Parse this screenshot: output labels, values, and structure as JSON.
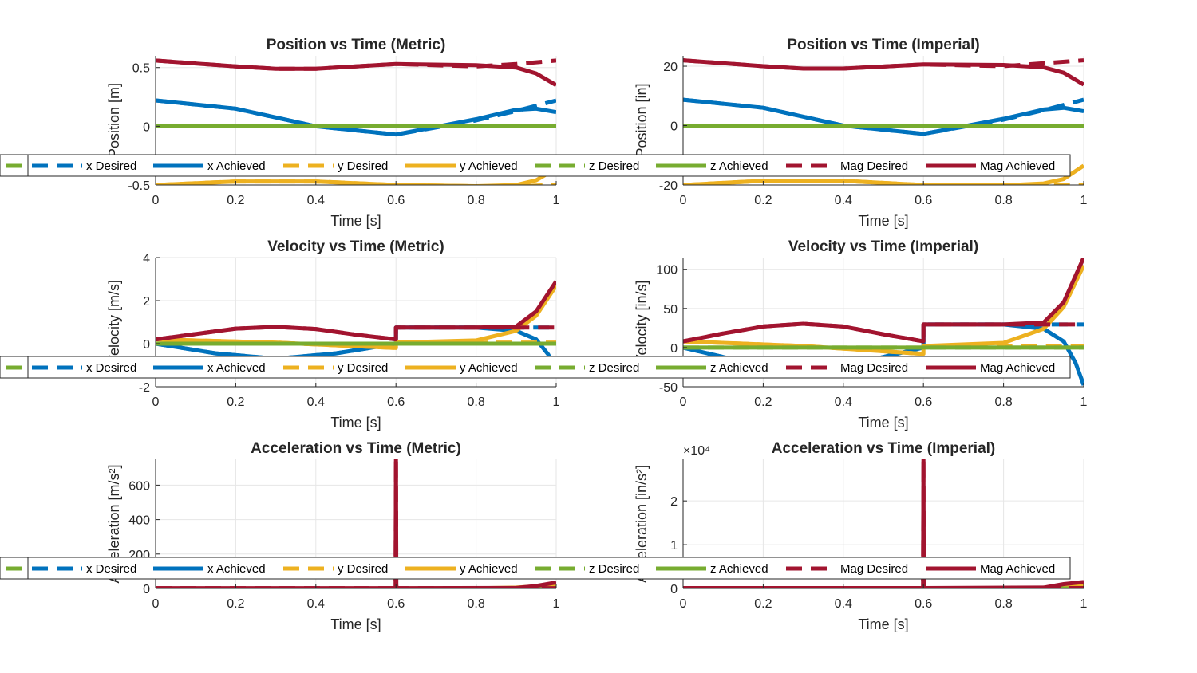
{
  "legend_entries": [
    "x Desired",
    "x Achieved",
    "y Desired",
    "y Achieved",
    "z Desired",
    "z Achieved",
    "Mag Desired",
    "Mag Achieved"
  ],
  "colors": {
    "x": "#0072BD",
    "y": "#EDB120",
    "z": "#77AC30",
    "mag": "#A2142F",
    "grid": "#e6e6e6",
    "axis": "#262626"
  },
  "chart_data": [
    {
      "type": "line",
      "title": "Position vs Time (Metric)",
      "xlabel": "Time [s]",
      "ylabel": "Position [m]",
      "xlim": [
        0,
        1
      ],
      "ylim": [
        -0.5,
        0.6
      ],
      "xticks": [
        0,
        0.2,
        0.4,
        0.6,
        0.8,
        1
      ],
      "xtick_labels": [
        "0",
        "0.2",
        "0.4",
        "0.6",
        "0.8",
        "1"
      ],
      "yticks": [
        -0.5,
        0,
        0.5
      ],
      "ytick_labels": [
        "-0.5",
        "0",
        "0.5"
      ],
      "series": [
        {
          "name": "x Desired",
          "x": [
            0,
            0.2,
            0.4,
            0.6,
            0.8,
            0.9,
            1.0
          ],
          "y": [
            0.22,
            0.15,
            0.0,
            -0.07,
            0.05,
            0.13,
            0.22
          ]
        },
        {
          "name": "x Achieved",
          "x": [
            0,
            0.2,
            0.4,
            0.6,
            0.8,
            0.9,
            0.95,
            1.0
          ],
          "y": [
            0.22,
            0.15,
            0.0,
            -0.07,
            0.06,
            0.14,
            0.15,
            0.12
          ]
        },
        {
          "name": "y Desired",
          "x": [
            0,
            0.2,
            0.4,
            0.6,
            0.8,
            0.9,
            1.0
          ],
          "y": [
            -0.5,
            -0.47,
            -0.47,
            -0.5,
            -0.51,
            -0.51,
            -0.5
          ]
        },
        {
          "name": "y Achieved",
          "x": [
            0,
            0.2,
            0.4,
            0.6,
            0.8,
            0.9,
            0.95,
            1.0
          ],
          "y": [
            -0.5,
            -0.47,
            -0.47,
            -0.5,
            -0.51,
            -0.5,
            -0.46,
            -0.36
          ]
        },
        {
          "name": "z Desired",
          "x": [
            0,
            1
          ],
          "y": [
            0,
            0
          ]
        },
        {
          "name": "z Achieved",
          "x": [
            0,
            1
          ],
          "y": [
            0,
            0
          ]
        },
        {
          "name": "Mag Desired",
          "x": [
            0,
            0.2,
            0.3,
            0.4,
            0.6,
            0.8,
            0.9,
            1.0
          ],
          "y": [
            0.56,
            0.51,
            0.49,
            0.49,
            0.53,
            0.51,
            0.53,
            0.56
          ]
        },
        {
          "name": "Mag Achieved",
          "x": [
            0,
            0.2,
            0.3,
            0.4,
            0.6,
            0.8,
            0.9,
            0.95,
            1.0
          ],
          "y": [
            0.56,
            0.51,
            0.49,
            0.49,
            0.53,
            0.52,
            0.5,
            0.45,
            0.35
          ]
        }
      ]
    },
    {
      "type": "line",
      "title": "Position vs Time (Imperial)",
      "xlabel": "Time [s]",
      "ylabel": "Position [in]",
      "xlim": [
        0,
        1
      ],
      "ylim": [
        -20,
        23.5
      ],
      "xticks": [
        0,
        0.2,
        0.4,
        0.6,
        0.8,
        1
      ],
      "xtick_labels": [
        "0",
        "0.2",
        "0.4",
        "0.6",
        "0.8",
        "1"
      ],
      "yticks": [
        -20,
        0,
        20
      ],
      "ytick_labels": [
        "-20",
        "0",
        "20"
      ],
      "series": [
        {
          "name": "x Desired",
          "x": [
            0,
            0.2,
            0.4,
            0.6,
            0.8,
            0.9,
            1.0
          ],
          "y": [
            8.7,
            6,
            0,
            -2.8,
            2,
            5.2,
            8.7
          ]
        },
        {
          "name": "x Achieved",
          "x": [
            0,
            0.2,
            0.4,
            0.6,
            0.8,
            0.9,
            0.95,
            1.0
          ],
          "y": [
            8.7,
            6,
            0,
            -2.8,
            2.3,
            5.4,
            6,
            4.8
          ]
        },
        {
          "name": "y Desired",
          "x": [
            0,
            0.2,
            0.4,
            0.6,
            0.8,
            0.9,
            1.0
          ],
          "y": [
            -20,
            -18.6,
            -18.6,
            -20,
            -20.1,
            -20.1,
            -20
          ]
        },
        {
          "name": "y Achieved",
          "x": [
            0,
            0.2,
            0.4,
            0.6,
            0.8,
            0.9,
            0.95,
            1.0
          ],
          "y": [
            -20,
            -18.6,
            -18.6,
            -20,
            -20.1,
            -19.5,
            -18,
            -13.5
          ]
        },
        {
          "name": "z Desired",
          "x": [
            0,
            1
          ],
          "y": [
            0,
            0
          ]
        },
        {
          "name": "z Achieved",
          "x": [
            0,
            1
          ],
          "y": [
            0,
            0
          ]
        },
        {
          "name": "Mag Desired",
          "x": [
            0,
            0.2,
            0.3,
            0.4,
            0.6,
            0.8,
            0.9,
            1.0
          ],
          "y": [
            22,
            20,
            19.2,
            19.2,
            20.6,
            20,
            21,
            22
          ]
        },
        {
          "name": "Mag Achieved",
          "x": [
            0,
            0.2,
            0.3,
            0.4,
            0.6,
            0.8,
            0.9,
            0.95,
            1.0
          ],
          "y": [
            22,
            20,
            19.2,
            19.2,
            20.6,
            20.4,
            19.6,
            17.8,
            13.8
          ]
        }
      ]
    },
    {
      "type": "line",
      "title": "Velocity vs Time (Metric)",
      "xlabel": "Time [s]",
      "ylabel": "Velocity [m/s]",
      "xlim": [
        0,
        1
      ],
      "ylim": [
        -2,
        4
      ],
      "xticks": [
        0,
        0.2,
        0.4,
        0.6,
        0.8,
        1
      ],
      "xtick_labels": [
        "0",
        "0.2",
        "0.4",
        "0.6",
        "0.8",
        "1"
      ],
      "yticks": [
        -2,
        0,
        2,
        4
      ],
      "ytick_labels": [
        "-2",
        "0",
        "2",
        "4"
      ],
      "series": [
        {
          "name": "x Desired",
          "x": [
            0,
            0.15,
            0.3,
            0.45,
            0.6,
            0.6,
            0.8,
            0.95,
            1.0
          ],
          "y": [
            0,
            -0.45,
            -0.7,
            -0.45,
            0,
            0.75,
            0.75,
            0.75,
            0.75
          ]
        },
        {
          "name": "x Achieved",
          "x": [
            0,
            0.15,
            0.3,
            0.45,
            0.6,
            0.6,
            0.8,
            0.9,
            0.95,
            0.98,
            1.0
          ],
          "y": [
            0,
            -0.45,
            -0.7,
            -0.45,
            0,
            0.75,
            0.75,
            0.6,
            0.2,
            -0.5,
            -1.2
          ]
        },
        {
          "name": "y Desired",
          "x": [
            0,
            0.3,
            0.6,
            0.6,
            1.0
          ],
          "y": [
            0.2,
            0.05,
            -0.2,
            0.05,
            0.05
          ]
        },
        {
          "name": "y Achieved",
          "x": [
            0,
            0.3,
            0.6,
            0.6,
            0.8,
            0.9,
            0.95,
            1.0
          ],
          "y": [
            0.2,
            0.05,
            -0.2,
            0.05,
            0.15,
            0.6,
            1.3,
            2.7
          ]
        },
        {
          "name": "z Desired",
          "x": [
            0,
            1
          ],
          "y": [
            0,
            0
          ]
        },
        {
          "name": "z Achieved",
          "x": [
            0,
            1
          ],
          "y": [
            0,
            0
          ]
        },
        {
          "name": "Mag Desired",
          "x": [
            0,
            0.1,
            0.2,
            0.3,
            0.4,
            0.5,
            0.6,
            0.6,
            0.8,
            1.0
          ],
          "y": [
            0.2,
            0.45,
            0.7,
            0.78,
            0.68,
            0.42,
            0.2,
            0.75,
            0.75,
            0.75
          ]
        },
        {
          "name": "Mag Achieved",
          "x": [
            0,
            0.1,
            0.2,
            0.3,
            0.4,
            0.5,
            0.6,
            0.6,
            0.8,
            0.9,
            0.95,
            1.0
          ],
          "y": [
            0.2,
            0.45,
            0.7,
            0.78,
            0.68,
            0.42,
            0.2,
            0.75,
            0.75,
            0.8,
            1.5,
            2.9
          ]
        }
      ]
    },
    {
      "type": "line",
      "title": "Velocity vs Time (Imperial)",
      "xlabel": "Time [s]",
      "ylabel": "Velocity [in/s]",
      "xlim": [
        0,
        1
      ],
      "ylim": [
        -50,
        115
      ],
      "xticks": [
        0,
        0.2,
        0.4,
        0.6,
        0.8,
        1
      ],
      "xtick_labels": [
        "0",
        "0.2",
        "0.4",
        "0.6",
        "0.8",
        "1"
      ],
      "yticks": [
        -50,
        0,
        50,
        100
      ],
      "ytick_labels": [
        "-50",
        "0",
        "50",
        "100"
      ],
      "series": [
        {
          "name": "x Desired",
          "x": [
            0,
            0.15,
            0.3,
            0.45,
            0.6,
            0.6,
            0.8,
            0.95,
            1.0
          ],
          "y": [
            0,
            -18,
            -27,
            -18,
            0,
            29.5,
            29.5,
            29.5,
            29.5
          ]
        },
        {
          "name": "x Achieved",
          "x": [
            0,
            0.15,
            0.3,
            0.45,
            0.6,
            0.6,
            0.8,
            0.9,
            0.95,
            0.98,
            1.0
          ],
          "y": [
            0,
            -18,
            -27,
            -18,
            0,
            29.5,
            29.5,
            24,
            8,
            -20,
            -48
          ]
        },
        {
          "name": "y Desired",
          "x": [
            0,
            0.3,
            0.6,
            0.6,
            1.0
          ],
          "y": [
            8,
            2,
            -8,
            2,
            2
          ]
        },
        {
          "name": "y Achieved",
          "x": [
            0,
            0.3,
            0.6,
            0.6,
            0.8,
            0.9,
            0.95,
            1.0
          ],
          "y": [
            8,
            2,
            -8,
            2,
            6,
            24,
            52,
            105
          ]
        },
        {
          "name": "z Desired",
          "x": [
            0,
            1
          ],
          "y": [
            0,
            0
          ]
        },
        {
          "name": "z Achieved",
          "x": [
            0,
            1
          ],
          "y": [
            0,
            0
          ]
        },
        {
          "name": "Mag Desired",
          "x": [
            0,
            0.1,
            0.2,
            0.3,
            0.4,
            0.5,
            0.6,
            0.6,
            0.8,
            1.0
          ],
          "y": [
            8,
            18,
            27,
            30.5,
            27,
            17,
            8,
            29.5,
            29.5,
            29.5
          ]
        },
        {
          "name": "Mag Achieved",
          "x": [
            0,
            0.1,
            0.2,
            0.3,
            0.4,
            0.5,
            0.6,
            0.6,
            0.8,
            0.9,
            0.95,
            1.0
          ],
          "y": [
            8,
            18,
            27,
            30.5,
            27,
            17,
            8,
            29.5,
            29.5,
            32,
            58,
            115
          ]
        }
      ]
    },
    {
      "type": "line",
      "title": "Acceleration vs Time (Metric)",
      "xlabel": "Time [s]",
      "ylabel": "Acceleration [m/s²]",
      "xlim": [
        0,
        1
      ],
      "ylim": [
        0,
        750
      ],
      "xticks": [
        0,
        0.2,
        0.4,
        0.6,
        0.8,
        1
      ],
      "xtick_labels": [
        "0",
        "0.2",
        "0.4",
        "0.6",
        "0.8",
        "1"
      ],
      "yticks": [
        0,
        200,
        400,
        600
      ],
      "ytick_labels": [
        "0",
        "200",
        "400",
        "600"
      ],
      "series": [
        {
          "name": "x Desired",
          "x": [
            0,
            0.3,
            0.6,
            0.6,
            1.0
          ],
          "y": [
            -2,
            -4,
            -2,
            0,
            0
          ]
        },
        {
          "name": "x Achieved",
          "x": [
            0,
            0.3,
            0.6,
            0.6,
            0.9,
            0.95,
            1.0
          ],
          "y": [
            -2,
            -4,
            -2,
            0,
            -2,
            -10,
            -30
          ]
        },
        {
          "name": "y Desired",
          "x": [
            0,
            1.0
          ],
          "y": [
            -1,
            -1
          ]
        },
        {
          "name": "y Achieved",
          "x": [
            0,
            0.8,
            0.9,
            0.95,
            1.0
          ],
          "y": [
            -1,
            1,
            5,
            12,
            20
          ]
        },
        {
          "name": "z Desired",
          "x": [
            0,
            1
          ],
          "y": [
            0,
            0
          ]
        },
        {
          "name": "z Achieved",
          "x": [
            0,
            1
          ],
          "y": [
            0,
            0
          ]
        },
        {
          "name": "Mag Desired",
          "x": [
            0,
            0.599,
            0.6,
            0.601,
            1.0
          ],
          "y": [
            2,
            2,
            750,
            2,
            2
          ]
        },
        {
          "name": "Mag Achieved",
          "x": [
            0,
            0.599,
            0.6,
            0.601,
            0.9,
            0.95,
            1.0
          ],
          "y": [
            2,
            2,
            750,
            2,
            3,
            15,
            35
          ]
        }
      ]
    },
    {
      "type": "line",
      "title": "Acceleration vs Time (Imperial)",
      "xlabel": "Time [s]",
      "ylabel": "Acceleration [in/s²]",
      "y_exponent_label": "×10⁴",
      "xlim": [
        0,
        1
      ],
      "ylim": [
        0,
        2.95
      ],
      "xticks": [
        0,
        0.2,
        0.4,
        0.6,
        0.8,
        1
      ],
      "xtick_labels": [
        "0",
        "0.2",
        "0.4",
        "0.6",
        "0.8",
        "1"
      ],
      "yticks": [
        0,
        1,
        2
      ],
      "ytick_labels": [
        "0",
        "1",
        "2"
      ],
      "series": [
        {
          "name": "x Desired",
          "x": [
            0,
            0.3,
            0.6,
            0.6,
            1.0
          ],
          "y": [
            -0.01,
            -0.015,
            -0.01,
            0,
            0
          ]
        },
        {
          "name": "x Achieved",
          "x": [
            0,
            0.3,
            0.6,
            0.6,
            0.9,
            0.95,
            1.0
          ],
          "y": [
            -0.01,
            -0.015,
            -0.01,
            0,
            -0.01,
            -0.05,
            -0.12
          ]
        },
        {
          "name": "y Desired",
          "x": [
            0,
            1.0
          ],
          "y": [
            -0.005,
            -0.005
          ]
        },
        {
          "name": "y Achieved",
          "x": [
            0,
            0.8,
            0.9,
            0.95,
            1.0
          ],
          "y": [
            -0.005,
            0.005,
            0.02,
            0.05,
            0.08
          ]
        },
        {
          "name": "z Desired",
          "x": [
            0,
            1
          ],
          "y": [
            0,
            0
          ]
        },
        {
          "name": "z Achieved",
          "x": [
            0,
            1
          ],
          "y": [
            0,
            0
          ]
        },
        {
          "name": "Mag Desired",
          "x": [
            0,
            0.599,
            0.6,
            0.601,
            1.0
          ],
          "y": [
            0.01,
            0.01,
            2.95,
            0.01,
            0.01
          ]
        },
        {
          "name": "Mag Achieved",
          "x": [
            0,
            0.599,
            0.6,
            0.601,
            0.9,
            0.95,
            1.0
          ],
          "y": [
            0.01,
            0.01,
            2.95,
            0.01,
            0.02,
            0.1,
            0.15
          ]
        }
      ]
    }
  ]
}
